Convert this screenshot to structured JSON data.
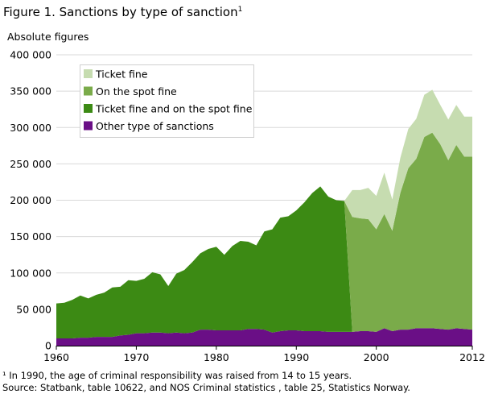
{
  "figure": {
    "title": "Figure 1. Sanctions by type of sanction",
    "title_footnote_mark": "1",
    "y_unit_label": "Absolute figures",
    "footnote": "¹ In 1990, the age of criminal responsibility was raised from 14 to 15 years.",
    "source": "Source: Statbank, table 10622, and NOS Criminal statistics , table 25, Statistics Norway."
  },
  "chart_data": {
    "type": "area",
    "stacked": true,
    "title": "Figure 1. Sanctions by type of sanction",
    "ylabel": "Absolute figures",
    "xlim": [
      1960,
      2012
    ],
    "ylim": [
      0,
      400000
    ],
    "x_ticks": [
      1960,
      1970,
      1980,
      1990,
      2000,
      2012
    ],
    "y_ticks": [
      0,
      50000,
      100000,
      150000,
      200000,
      250000,
      300000,
      350000,
      400000
    ],
    "y_tick_labels": [
      "0",
      "50 000",
      "100 000",
      "150 000",
      "200 000",
      "250 000",
      "300 000",
      "350 000",
      "400 000"
    ],
    "grid": "horizontal",
    "legend_position": "top-left",
    "x": [
      1960,
      1961,
      1962,
      1963,
      1964,
      1965,
      1966,
      1967,
      1968,
      1969,
      1970,
      1971,
      1972,
      1973,
      1974,
      1975,
      1976,
      1977,
      1978,
      1979,
      1980,
      1981,
      1982,
      1983,
      1984,
      1985,
      1986,
      1987,
      1988,
      1989,
      1990,
      1991,
      1992,
      1993,
      1994,
      1995,
      1996,
      1997,
      1998,
      1999,
      2000,
      2001,
      2002,
      2003,
      2004,
      2005,
      2006,
      2007,
      2008,
      2009,
      2010,
      2011,
      2012
    ],
    "series": [
      {
        "name": "Ticket fine",
        "color": "#c6dcb0",
        "values": [
          0,
          0,
          0,
          0,
          0,
          0,
          0,
          0,
          0,
          0,
          0,
          0,
          0,
          0,
          0,
          0,
          0,
          0,
          0,
          0,
          0,
          0,
          0,
          0,
          0,
          0,
          0,
          0,
          0,
          0,
          0,
          0,
          0,
          0,
          0,
          0,
          0,
          37000,
          39000,
          43000,
          46000,
          57000,
          43000,
          48000,
          54000,
          55000,
          58000,
          59000,
          54000,
          56000,
          55000,
          55000,
          55000
        ]
      },
      {
        "name": "On the spot fine",
        "color": "#7aab4a",
        "values": [
          0,
          0,
          0,
          0,
          0,
          0,
          0,
          0,
          0,
          0,
          0,
          0,
          0,
          0,
          0,
          0,
          0,
          0,
          0,
          0,
          0,
          0,
          0,
          0,
          0,
          0,
          0,
          0,
          0,
          0,
          0,
          0,
          0,
          0,
          0,
          0,
          0,
          158000,
          155000,
          154000,
          141000,
          157000,
          138000,
          188000,
          222000,
          233000,
          263000,
          269000,
          254000,
          233000,
          252000,
          237000,
          238000
        ]
      },
      {
        "name": "Ticket fine and on the spot fine",
        "color": "#3c8a14",
        "values": [
          48000,
          49000,
          53000,
          58000,
          54000,
          58000,
          61000,
          68000,
          67000,
          75000,
          72000,
          75000,
          83000,
          80000,
          65000,
          81000,
          87000,
          97000,
          105000,
          111000,
          115000,
          104000,
          116000,
          123000,
          120000,
          115000,
          135000,
          142000,
          156000,
          157000,
          165000,
          177000,
          190000,
          199000,
          186000,
          181000,
          180000,
          0,
          0,
          0,
          0,
          0,
          0,
          0,
          0,
          0,
          0,
          0,
          0,
          0,
          0,
          0,
          0
        ]
      },
      {
        "name": "Other type of sanctions",
        "color": "#6a0f86",
        "values": [
          10000,
          10000,
          10000,
          11000,
          11000,
          12000,
          12000,
          12000,
          14000,
          15000,
          17000,
          17000,
          18000,
          18000,
          17000,
          18000,
          17000,
          18000,
          22000,
          22000,
          21000,
          21000,
          21000,
          21000,
          23000,
          23000,
          22000,
          18000,
          20000,
          21000,
          21000,
          20000,
          20000,
          20000,
          19000,
          19000,
          19000,
          19000,
          20000,
          20000,
          19000,
          24000,
          20000,
          22000,
          22000,
          24000,
          24000,
          24000,
          23000,
          22000,
          24000,
          23000,
          22000
        ]
      }
    ]
  }
}
